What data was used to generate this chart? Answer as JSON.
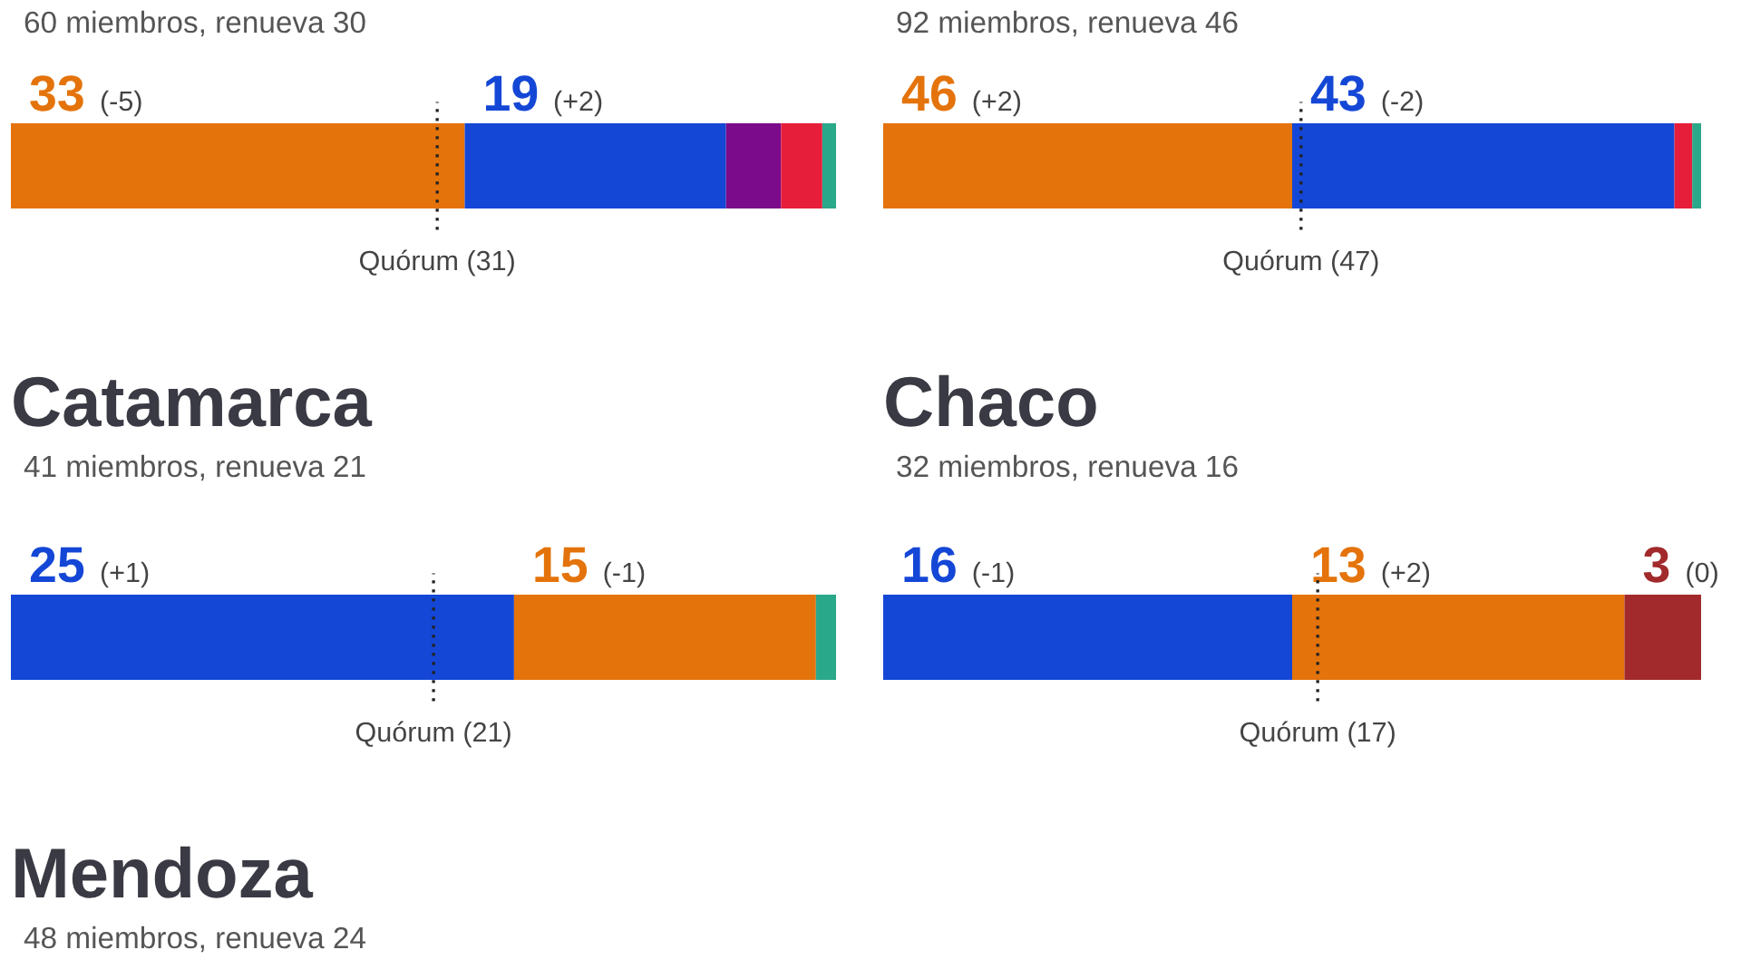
{
  "chart_data": [
    {
      "type": "bar",
      "orientation": "horizontal",
      "stacked": true,
      "subtitle": "60 miembros, renueva 30",
      "categories": [
        null
      ],
      "xlim": [
        0,
        60
      ],
      "tick_labels": false,
      "series": [
        {
          "color": "#e4730b",
          "values": [
            33
          ],
          "value_labels": [
            "33"
          ]
        },
        {
          "color": "#1447d6",
          "values": [
            19
          ],
          "value_labels": [
            "19"
          ]
        },
        {
          "color": "#7b0b8b",
          "values": [
            4
          ]
        },
        {
          "color": "#e61e3a",
          "values": [
            3
          ]
        },
        {
          "color": "#2aa88a",
          "values": [
            1
          ]
        }
      ],
      "annotations": [
        "(-5)",
        "(+2)"
      ],
      "ref_lines": [
        {
          "axis": "x",
          "value": 31,
          "label": "Quórum (31)",
          "line_style": "dotted",
          "color": "#222222"
        }
      ]
    },
    {
      "type": "bar",
      "orientation": "horizontal",
      "stacked": true,
      "subtitle": "92 miembros, renueva 46",
      "categories": [
        null
      ],
      "xlim": [
        0,
        92
      ],
      "tick_labels": false,
      "series": [
        {
          "color": "#e4730b",
          "values": [
            46
          ],
          "value_labels": [
            "46"
          ]
        },
        {
          "color": "#1447d6",
          "values": [
            43
          ],
          "value_labels": [
            "43"
          ]
        },
        {
          "color": "#e61e3a",
          "values": [
            2
          ]
        },
        {
          "color": "#2aa88a",
          "values": [
            1
          ]
        }
      ],
      "annotations": [
        "(+2)",
        "(-2)"
      ],
      "ref_lines": [
        {
          "axis": "x",
          "value": 47,
          "label": "Quórum (47)",
          "line_style": "dotted",
          "color": "#222222"
        }
      ]
    },
    {
      "type": "bar",
      "orientation": "horizontal",
      "stacked": true,
      "title": "Catamarca",
      "subtitle": "41 miembros, renueva 21",
      "categories": [
        null
      ],
      "xlim": [
        0,
        41
      ],
      "tick_labels": false,
      "series": [
        {
          "color": "#1447d6",
          "values": [
            25
          ],
          "value_labels": [
            "25"
          ]
        },
        {
          "color": "#e4730b",
          "values": [
            15
          ],
          "value_labels": [
            "15"
          ]
        },
        {
          "color": "#2aa88a",
          "values": [
            1
          ]
        }
      ],
      "annotations": [
        "(+1)",
        "(-1)"
      ],
      "ref_lines": [
        {
          "axis": "x",
          "value": 21,
          "label": "Quórum (21)",
          "line_style": "dotted",
          "color": "#222222"
        }
      ]
    },
    {
      "type": "bar",
      "orientation": "horizontal",
      "stacked": true,
      "title": "Chaco",
      "subtitle": "32 miembros, renueva 16",
      "categories": [
        null
      ],
      "xlim": [
        0,
        32
      ],
      "tick_labels": false,
      "series": [
        {
          "color": "#1447d6",
          "values": [
            16
          ],
          "value_labels": [
            "16"
          ]
        },
        {
          "color": "#e4730b",
          "values": [
            13
          ],
          "value_labels": [
            "13"
          ]
        },
        {
          "color": "#a22a2c",
          "values": [
            3
          ],
          "value_labels": [
            "3"
          ]
        }
      ],
      "annotations": [
        "(-1)",
        "(+2)",
        "(0)"
      ],
      "ref_lines": [
        {
          "axis": "x",
          "value": 17,
          "label": "Quórum (17)",
          "line_style": "dotted",
          "color": "#222222"
        }
      ]
    },
    {
      "type": "other",
      "title": "Mendoza",
      "subtitle": "48 miembros, renueva 24"
    }
  ]
}
